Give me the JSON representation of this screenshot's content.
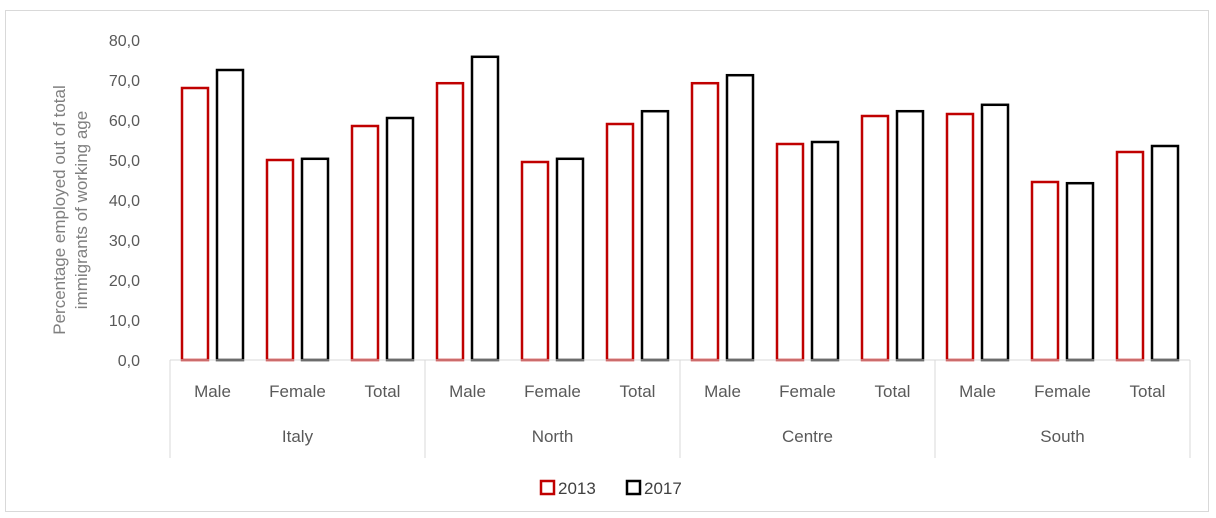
{
  "chart_data": {
    "type": "bar",
    "ylabel_lines": [
      "Percentage employed out of  total",
      "immigrants of working age"
    ],
    "ylim": [
      0,
      80
    ],
    "yticks": [
      "0,0",
      "10,0",
      "20,0",
      "30,0",
      "40,0",
      "50,0",
      "60,0",
      "70,0",
      "80,0"
    ],
    "groups": [
      {
        "name": "Italy",
        "categories": [
          "Male",
          "Female",
          "Total"
        ]
      },
      {
        "name": "North",
        "categories": [
          "Male",
          "Female",
          "Total"
        ]
      },
      {
        "name": "Centre",
        "categories": [
          "Male",
          "Female",
          "Total"
        ]
      },
      {
        "name": "South",
        "categories": [
          "Male",
          "Female",
          "Total"
        ]
      }
    ],
    "series": [
      {
        "name": "2013",
        "color": "#c00000",
        "values": [
          68.0,
          50.0,
          58.5,
          69.2,
          49.5,
          59.0,
          69.2,
          54.0,
          61.0,
          61.5,
          44.5,
          52.0
        ]
      },
      {
        "name": "2017",
        "color": "#000000",
        "values": [
          72.5,
          50.3,
          60.5,
          75.8,
          50.3,
          62.2,
          71.2,
          54.5,
          62.2,
          63.8,
          44.2,
          53.5
        ]
      }
    ],
    "legend_position": "bottom",
    "grid": false
  }
}
